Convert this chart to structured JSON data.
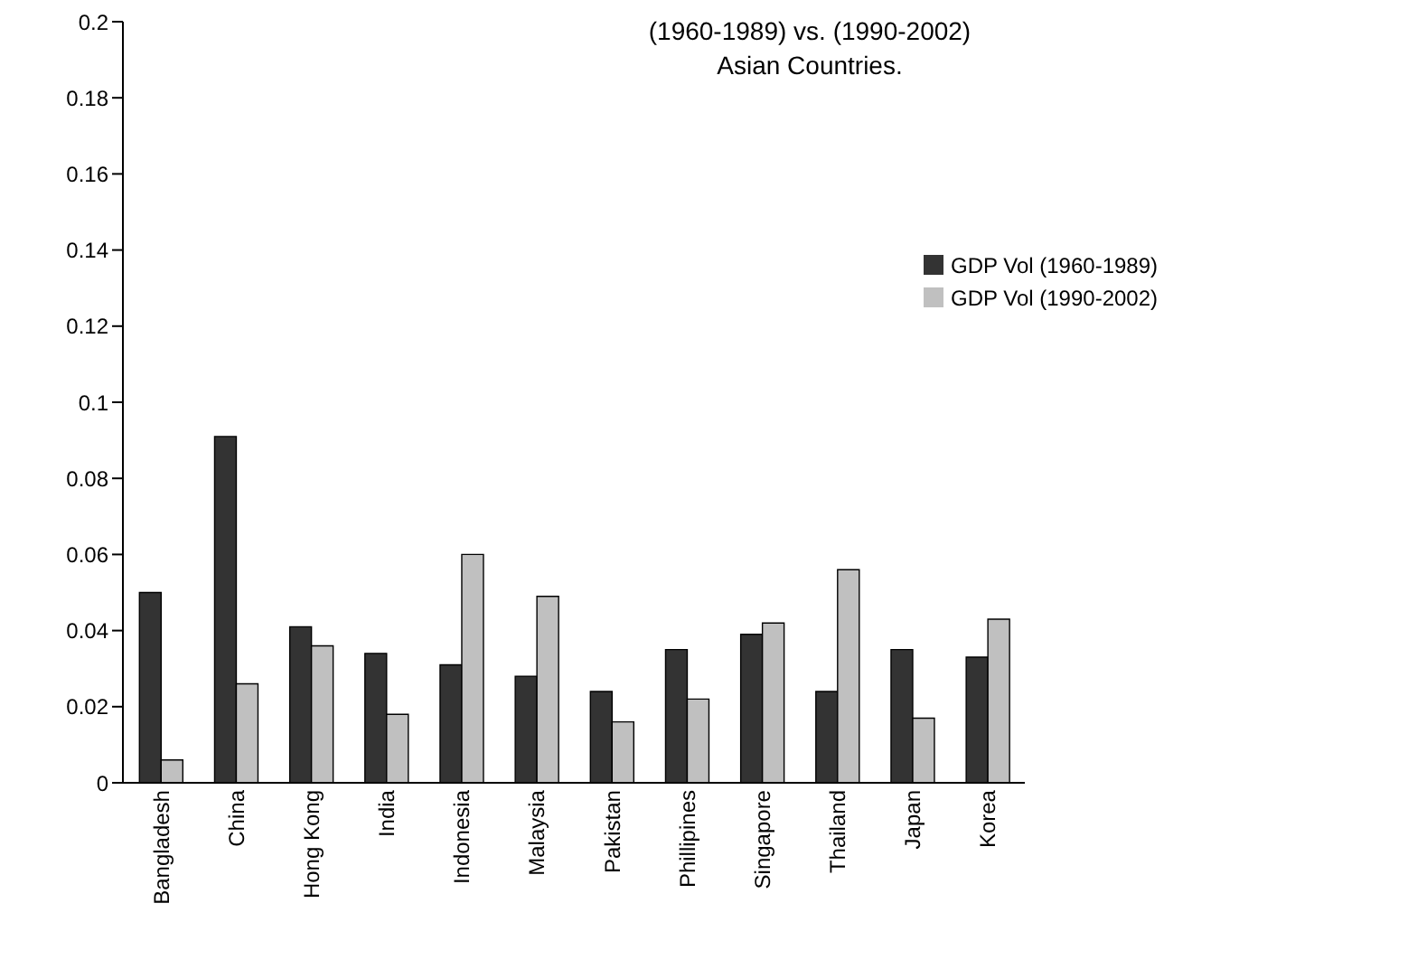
{
  "chart_data": {
    "type": "bar",
    "title": "(1960-1989) vs. (1990-2002)",
    "subtitle": "Asian Countries.",
    "categories": [
      "Bangladesh",
      "China",
      "Hong Kong",
      "India",
      "Indonesia",
      "Malaysia",
      "Pakistan",
      "Phillipines",
      "Singapore",
      "Thailand",
      "Japan",
      "Korea"
    ],
    "series": [
      {
        "name": "GDP Vol (1960-1989)",
        "color": "#333333",
        "values": [
          0.05,
          0.091,
          0.041,
          0.034,
          0.031,
          0.028,
          0.024,
          0.035,
          0.039,
          0.024,
          0.035,
          0.033
        ]
      },
      {
        "name": "GDP Vol (1990-2002)",
        "color": "#c0c0c0",
        "values": [
          0.006,
          0.026,
          0.036,
          0.018,
          0.06,
          0.049,
          0.016,
          0.022,
          0.042,
          0.056,
          0.017,
          0.043
        ]
      }
    ],
    "ylim": [
      0,
      0.2
    ],
    "yticks": [
      0,
      0.02,
      0.04,
      0.06,
      0.08,
      0.1,
      0.12,
      0.14,
      0.16,
      0.18,
      0.2
    ],
    "grid": false,
    "legend": "top right"
  }
}
